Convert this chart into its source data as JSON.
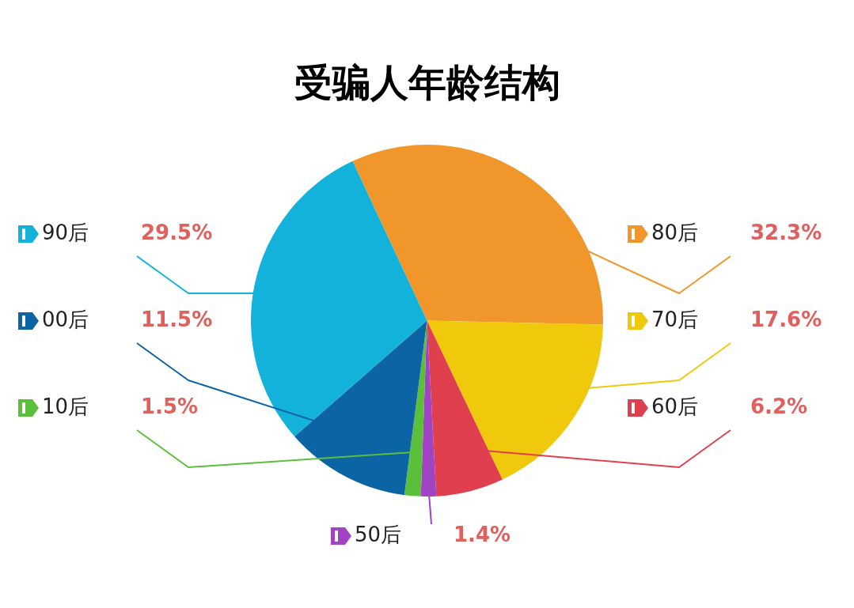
{
  "chart_data": {
    "type": "pie",
    "title": "受骗人年龄结构",
    "categories": [
      "80后",
      "70后",
      "60后",
      "50后",
      "10后",
      "00后",
      "90后"
    ],
    "values": [
      32.3,
      17.6,
      6.2,
      1.4,
      1.5,
      11.5,
      29.5
    ],
    "colors": [
      "#f0962a",
      "#f0c80c",
      "#e0404e",
      "#a044c4",
      "#5cbf3c",
      "#0c64a4",
      "#12b2da"
    ],
    "value_labels": [
      "32.3%",
      "17.6%",
      "6.2%",
      "1.4%",
      "1.5%",
      "11.5%",
      "29.5%"
    ],
    "legend": "left"
  }
}
